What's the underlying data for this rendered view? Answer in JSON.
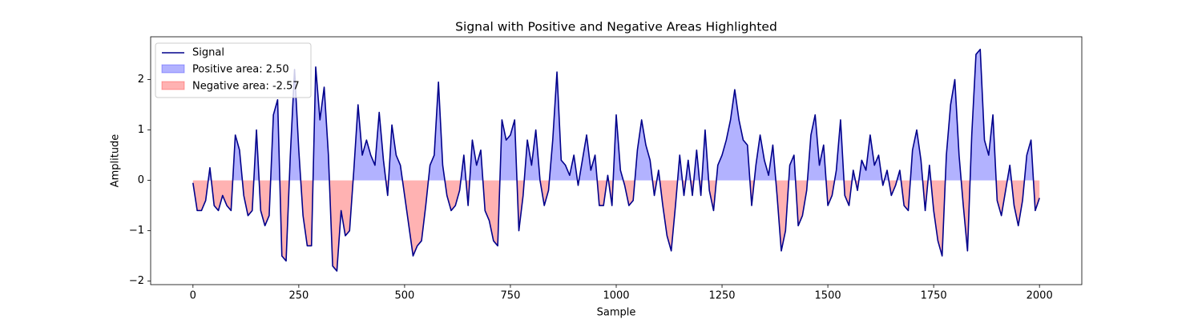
{
  "chart_data": {
    "type": "line",
    "title": "Signal with Positive and Negative Areas Highlighted",
    "x_label": "Sample",
    "y_label": "Amplitude",
    "x": [
      0,
      10,
      20,
      30,
      40,
      50,
      60,
      70,
      80,
      90,
      100,
      110,
      120,
      130,
      140,
      150,
      160,
      170,
      180,
      190,
      200,
      210,
      220,
      230,
      240,
      250,
      260,
      270,
      280,
      290,
      300,
      310,
      320,
      330,
      340,
      350,
      360,
      370,
      380,
      390,
      400,
      410,
      420,
      430,
      440,
      450,
      460,
      470,
      480,
      490,
      500,
      510,
      520,
      530,
      540,
      550,
      560,
      570,
      580,
      590,
      600,
      610,
      620,
      630,
      640,
      650,
      660,
      670,
      680,
      690,
      700,
      710,
      720,
      730,
      740,
      750,
      760,
      770,
      780,
      790,
      800,
      810,
      820,
      830,
      840,
      850,
      860,
      870,
      880,
      890,
      900,
      910,
      920,
      930,
      940,
      950,
      960,
      970,
      980,
      990,
      1000,
      1010,
      1020,
      1030,
      1040,
      1050,
      1060,
      1070,
      1080,
      1090,
      1100,
      1110,
      1120,
      1130,
      1140,
      1150,
      1160,
      1170,
      1180,
      1190,
      1200,
      1210,
      1220,
      1230,
      1240,
      1250,
      1260,
      1270,
      1280,
      1290,
      1300,
      1310,
      1320,
      1330,
      1340,
      1350,
      1360,
      1370,
      1380,
      1390,
      1400,
      1410,
      1420,
      1430,
      1440,
      1450,
      1460,
      1470,
      1480,
      1490,
      1500,
      1510,
      1520,
      1530,
      1540,
      1550,
      1560,
      1570,
      1580,
      1590,
      1600,
      1610,
      1620,
      1630,
      1640,
      1650,
      1660,
      1670,
      1680,
      1690,
      1700,
      1710,
      1720,
      1730,
      1740,
      1750,
      1760,
      1770,
      1780,
      1790,
      1800,
      1810,
      1820,
      1830,
      1840,
      1850,
      1860,
      1870,
      1880,
      1890,
      1900,
      1910,
      1920,
      1930,
      1940,
      1950,
      1960,
      1970,
      1980,
      1990,
      2000
    ],
    "series": [
      {
        "name": "Signal",
        "color": "#00008b",
        "values": [
          -0.05,
          -0.6,
          -0.6,
          -0.4,
          0.25,
          -0.5,
          -0.6,
          -0.3,
          -0.5,
          -0.6,
          0.9,
          0.6,
          -0.3,
          -0.7,
          -0.6,
          1.0,
          -0.6,
          -0.9,
          -0.7,
          1.3,
          1.6,
          -1.5,
          -1.6,
          0.5,
          2.2,
          0.6,
          -0.7,
          -1.3,
          -1.3,
          2.25,
          1.2,
          1.85,
          0.5,
          -1.7,
          -1.8,
          -0.6,
          -1.1,
          -1.0,
          0.2,
          1.5,
          0.5,
          0.8,
          0.5,
          0.3,
          1.35,
          0.4,
          -0.3,
          1.1,
          0.5,
          0.3,
          -0.3,
          -0.9,
          -1.5,
          -1.3,
          -1.2,
          -0.5,
          0.3,
          0.5,
          1.95,
          0.3,
          -0.3,
          -0.6,
          -0.5,
          -0.2,
          0.5,
          -0.5,
          0.8,
          0.3,
          0.6,
          -0.6,
          -0.8,
          -1.2,
          -1.3,
          1.2,
          0.8,
          0.9,
          1.2,
          -1.0,
          -0.3,
          0.8,
          0.3,
          1.0,
          0.0,
          -0.5,
          -0.2,
          0.8,
          2.15,
          0.4,
          0.3,
          0.1,
          0.5,
          -0.1,
          0.4,
          0.9,
          0.2,
          0.5,
          -0.5,
          -0.5,
          0.1,
          -0.5,
          1.3,
          0.2,
          -0.1,
          -0.5,
          -0.4,
          0.6,
          1.2,
          0.7,
          0.4,
          -0.3,
          0.2,
          -0.5,
          -1.1,
          -1.4,
          -0.5,
          0.5,
          -0.3,
          0.4,
          -0.3,
          0.6,
          -0.3,
          1.0,
          -0.2,
          -0.6,
          0.3,
          0.5,
          0.8,
          1.2,
          1.8,
          1.2,
          0.8,
          0.7,
          -0.5,
          0.3,
          0.9,
          0.4,
          0.1,
          0.7,
          -0.3,
          -1.4,
          -1.0,
          0.3,
          0.5,
          -0.9,
          -0.7,
          -0.2,
          0.9,
          1.3,
          0.3,
          0.7,
          -0.5,
          -0.3,
          0.2,
          1.2,
          -0.3,
          -0.5,
          0.2,
          -0.2,
          0.4,
          0.2,
          0.9,
          0.3,
          0.5,
          -0.1,
          0.2,
          -0.3,
          -0.1,
          0.2,
          -0.5,
          -0.6,
          0.6,
          1.0,
          0.4,
          -0.6,
          0.3,
          -0.6,
          -1.2,
          -1.5,
          0.5,
          1.5,
          2.0,
          0.5,
          -0.5,
          -1.4,
          0.9,
          2.5,
          2.6,
          0.8,
          0.5,
          1.3,
          -0.4,
          -0.7,
          -0.2,
          0.3,
          -0.5,
          -0.9,
          -0.4,
          0.5,
          0.8,
          -0.6,
          -0.35
        ]
      }
    ],
    "fill_positive": {
      "name": "Positive area: 2.50",
      "color": "#0000ff"
    },
    "fill_negative": {
      "name": "Negative area: -2.57",
      "color": "#ff0000"
    },
    "xlim": [
      -100,
      2100
    ],
    "ylim": [
      -2.07,
      2.85
    ],
    "xticks": [
      0,
      250,
      500,
      750,
      1000,
      1250,
      1500,
      1750,
      2000
    ],
    "yticks": [
      {
        "value": -2,
        "label": "−2"
      },
      {
        "value": -1,
        "label": "−1"
      },
      0,
      1,
      2
    ],
    "legend": "upper left"
  }
}
